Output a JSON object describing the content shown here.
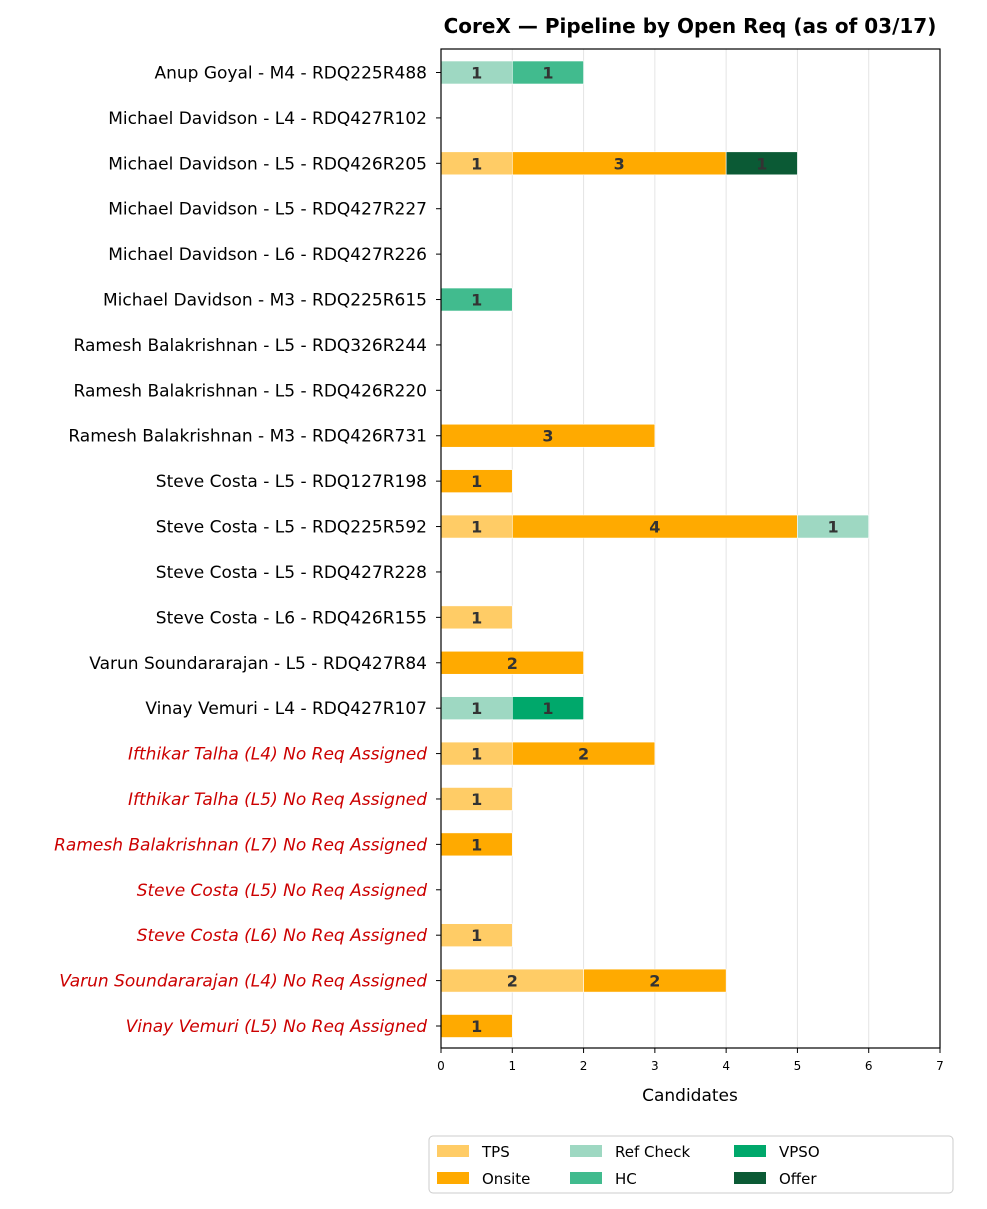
{
  "chart_data": {
    "type": "bar",
    "orientation": "horizontal",
    "stacked": true,
    "title": "CoreX — Pipeline by Open Req (as of 03/17)",
    "xlabel": "Candidates",
    "xlim": [
      0,
      7
    ],
    "xticks": [
      0,
      1,
      2,
      3,
      4,
      5,
      6,
      7
    ],
    "grid": "vertical",
    "legend_position": "bottom",
    "categories": [
      "Anup Goyal - M4 - RDQ225R488",
      "Michael Davidson - L4 - RDQ427R102",
      "Michael Davidson - L5 - RDQ426R205",
      "Michael Davidson - L5 - RDQ427R227",
      "Michael Davidson - L6 - RDQ427R226",
      "Michael Davidson - M3 - RDQ225R615",
      "Ramesh Balakrishnan - L5 - RDQ326R244",
      "Ramesh Balakrishnan - L5 - RDQ426R220",
      "Ramesh Balakrishnan - M3 - RDQ426R731",
      "Steve Costa - L5 - RDQ127R198",
      "Steve Costa - L5 - RDQ225R592",
      "Steve Costa - L5 - RDQ427R228",
      "Steve Costa - L6 - RDQ426R155",
      "Varun Soundararajan - L5 - RDQ427R84",
      "Vinay Vemuri - L4 - RDQ427R107",
      "Ifthikar Talha (L4) No Req Assigned",
      "Ifthikar Talha (L5) No Req Assigned",
      "Ramesh Balakrishnan (L7) No Req Assigned",
      "Steve Costa (L5) No Req Assigned",
      "Steve Costa (L6) No Req Assigned",
      "Varun Soundararajan (L4) No Req Assigned",
      "Vinay Vemuri (L5) No Req Assigned"
    ],
    "no_req_flags": [
      false,
      false,
      false,
      false,
      false,
      false,
      false,
      false,
      false,
      false,
      false,
      false,
      false,
      false,
      false,
      true,
      true,
      true,
      true,
      true,
      true,
      true
    ],
    "no_req_color": "#cc0000",
    "series": [
      {
        "name": "TPS",
        "color": "#ffcc66",
        "values": [
          0,
          0,
          1,
          0,
          0,
          0,
          0,
          0,
          0,
          0,
          1,
          0,
          1,
          0,
          0,
          1,
          1,
          0,
          0,
          1,
          2,
          0
        ]
      },
      {
        "name": "Onsite",
        "color": "#ffaa00",
        "values": [
          0,
          0,
          3,
          0,
          0,
          0,
          0,
          0,
          3,
          1,
          4,
          0,
          0,
          2,
          0,
          2,
          0,
          1,
          0,
          0,
          2,
          1
        ]
      },
      {
        "name": "Ref Check",
        "color": "#9ed8c2",
        "values": [
          1,
          0,
          0,
          0,
          0,
          0,
          0,
          0,
          0,
          0,
          1,
          0,
          0,
          0,
          1,
          0,
          0,
          0,
          0,
          0,
          0,
          0
        ]
      },
      {
        "name": "HC",
        "color": "#41bb8e",
        "values": [
          1,
          0,
          0,
          0,
          0,
          1,
          0,
          0,
          0,
          0,
          0,
          0,
          0,
          0,
          0,
          0,
          0,
          0,
          0,
          0,
          0,
          0
        ]
      },
      {
        "name": "VPSO",
        "color": "#00a86b",
        "values": [
          0,
          0,
          0,
          0,
          0,
          0,
          0,
          0,
          0,
          0,
          0,
          0,
          0,
          0,
          1,
          0,
          0,
          0,
          0,
          0,
          0,
          0
        ]
      },
      {
        "name": "Offer",
        "color": "#0b5a35",
        "values": [
          0,
          0,
          1,
          0,
          0,
          0,
          0,
          0,
          0,
          0,
          0,
          0,
          0,
          0,
          0,
          0,
          0,
          0,
          0,
          0,
          0,
          0
        ]
      }
    ]
  }
}
